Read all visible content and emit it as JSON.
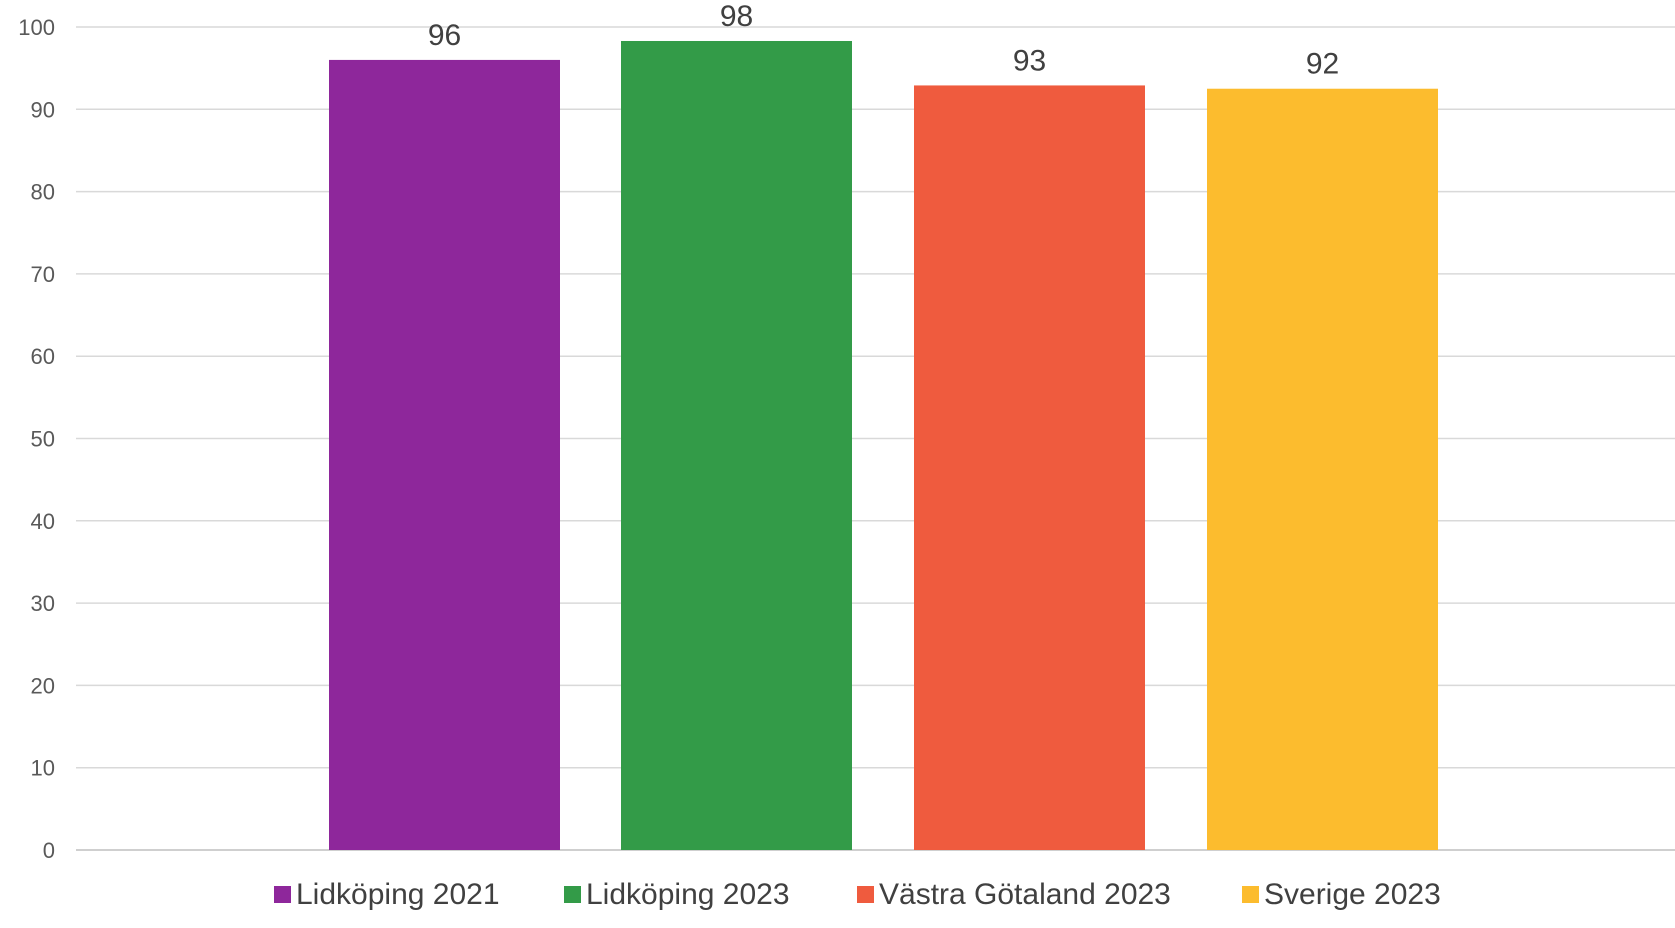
{
  "chart_data": {
    "type": "bar",
    "title": "",
    "xlabel": "",
    "ylabel": "",
    "ylim": [
      0,
      100
    ],
    "yticks": [
      0,
      10,
      20,
      30,
      40,
      50,
      60,
      70,
      80,
      90,
      100
    ],
    "grid": true,
    "legend_position": "bottom",
    "series": [
      {
        "name": "Lidköping 2021",
        "value": 96.0,
        "label": "96",
        "color": "#8e279b"
      },
      {
        "name": "Lidköping 2023",
        "value": 98.3,
        "label": "98",
        "color": "#339b48"
      },
      {
        "name": "Västra Götaland 2023",
        "value": 92.9,
        "label": "93",
        "color": "#ef5b3e"
      },
      {
        "name": "Sverige 2023",
        "value": 92.5,
        "label": "92",
        "color": "#fcbc2e"
      }
    ]
  }
}
